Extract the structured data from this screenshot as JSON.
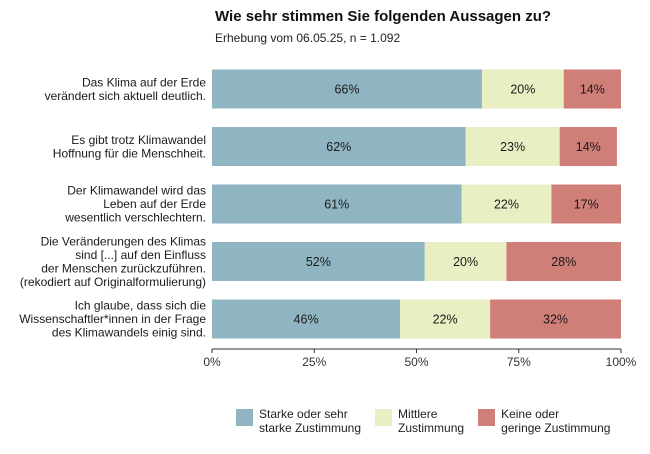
{
  "title": "Wie sehr stimmen Sie folgenden Aussagen zu?",
  "subtitle": "Erhebung vom 06.05.25, n = 1.092",
  "colors": {
    "strong": "#8fb4c2",
    "medium": "#e9eec3",
    "low": "#cf7e78",
    "axis": "#333333",
    "text": "#1a1a1a"
  },
  "chart_data": {
    "type": "bar",
    "orientation": "horizontal",
    "stacked": true,
    "title": "Wie sehr stimmen Sie folgenden Aussagen zu?",
    "subtitle": "Erhebung vom 06.05.25, n = 1.092",
    "xlabel": "",
    "ylabel": "",
    "xlim": [
      0,
      100
    ],
    "x_ticks": [
      "0%",
      "25%",
      "50%",
      "75%",
      "100%"
    ],
    "x_tick_values": [
      0,
      25,
      50,
      75,
      100
    ],
    "categories": [
      [
        "Das Klima auf der Erde",
        "verändert sich aktuell deutlich."
      ],
      [
        "Es gibt trotz Klimawandel",
        "Hoffnung für die Menschheit."
      ],
      [
        "Der Klimawandel wird das",
        "Leben auf der Erde",
        "wesentlich verschlechtern."
      ],
      [
        "Die Veränderungen des Klimas",
        "sind [...] auf den Einfluss",
        "der Menschen zurückzuführen.",
        "(rekodiert auf Originalformulierung)"
      ],
      [
        "Ich glaube, dass sich die",
        "Wissenschaftler*innen in der Frage",
        "des Klimawandels einig sind."
      ]
    ],
    "series": [
      {
        "name": "Starke oder sehr\nstarke Zustimmung",
        "key": "strong",
        "values": [
          66,
          62,
          61,
          52,
          46
        ]
      },
      {
        "name": "Mittlere\nZustimmung",
        "key": "medium",
        "values": [
          20,
          23,
          22,
          20,
          22
        ]
      },
      {
        "name": "Keine oder\ngeringe Zustimmung",
        "key": "low",
        "values": [
          14,
          14,
          17,
          28,
          32
        ]
      }
    ],
    "legend_position": "bottom"
  }
}
